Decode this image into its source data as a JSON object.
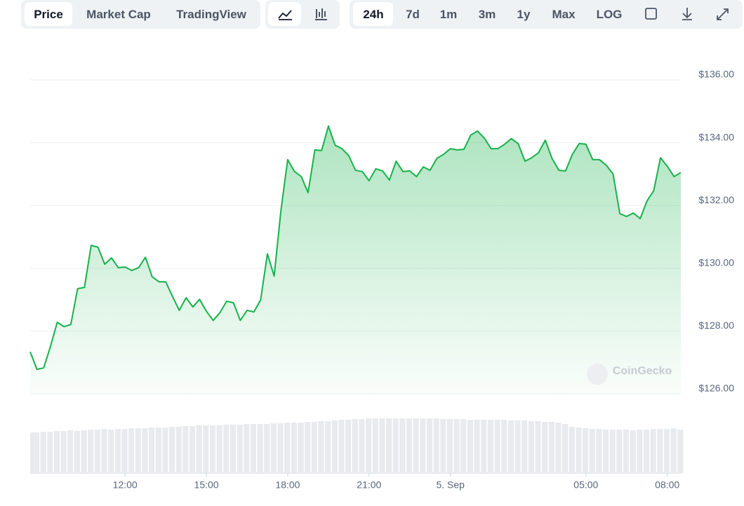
{
  "toolbar": {
    "views": [
      "Price",
      "Market Cap",
      "TradingView"
    ],
    "ranges": [
      "24h",
      "7d",
      "1m",
      "3m",
      "1y",
      "Max",
      "LOG"
    ]
  },
  "chart_data": {
    "type": "area",
    "watermark": "CoinGecko",
    "color": "#16b24a",
    "grid": true,
    "xlim": [
      8.5,
      32.5
    ],
    "xticks": [
      {
        "value": 12,
        "label": "12:00"
      },
      {
        "value": 15,
        "label": "15:00"
      },
      {
        "value": 18,
        "label": "18:00"
      },
      {
        "value": 21,
        "label": "21:00"
      },
      {
        "value": 24,
        "label": "5. Sep"
      },
      {
        "value": 29,
        "label": "05:00"
      },
      {
        "value": 32,
        "label": "08:00"
      }
    ],
    "ylim": [
      126,
      136
    ],
    "yticks": [
      {
        "value": 126,
        "label": "$126.00"
      },
      {
        "value": 128,
        "label": "$128.00"
      },
      {
        "value": 130,
        "label": "$130.00"
      },
      {
        "value": 132,
        "label": "$132.00"
      },
      {
        "value": 134,
        "label": "$134.00"
      },
      {
        "value": 136,
        "label": "$136.00"
      }
    ],
    "x": [
      8.5,
      8.75,
      9,
      9.25,
      9.5,
      9.75,
      10,
      10.25,
      10.5,
      10.75,
      11,
      11.25,
      11.5,
      11.75,
      12,
      12.25,
      12.5,
      12.75,
      13,
      13.25,
      13.5,
      13.75,
      14,
      14.25,
      14.5,
      14.75,
      15,
      15.25,
      15.5,
      15.75,
      16,
      16.25,
      16.5,
      16.75,
      17,
      17.25,
      17.5,
      17.75,
      18,
      18.25,
      18.5,
      18.75,
      19,
      19.25,
      19.5,
      19.75,
      20,
      20.25,
      20.5,
      20.75,
      21,
      21.25,
      21.5,
      21.75,
      22,
      22.25,
      22.5,
      22.75,
      23,
      23.25,
      23.5,
      23.75,
      24,
      24.25,
      24.5,
      24.75,
      25,
      25.25,
      25.5,
      25.75,
      26,
      26.25,
      26.5,
      26.75,
      27,
      27.25,
      27.5,
      27.75,
      28,
      28.25,
      28.5,
      28.75,
      29,
      29.25,
      29.5,
      29.75,
      30,
      30.25,
      30.5,
      30.75,
      31,
      31.25,
      31.5,
      31.75,
      32,
      32.25,
      32.5
    ],
    "series": [
      {
        "name": "Price",
        "values": [
          127.34,
          126.78,
          126.83,
          127.52,
          128.28,
          128.14,
          128.21,
          129.35,
          129.39,
          130.73,
          130.67,
          130.13,
          130.33,
          130.02,
          130.04,
          129.93,
          130.02,
          130.35,
          129.73,
          129.57,
          129.57,
          129.1,
          128.66,
          129.06,
          128.77,
          129.01,
          128.63,
          128.34,
          128.59,
          128.95,
          128.9,
          128.34,
          128.66,
          128.61,
          128.99,
          130.46,
          129.75,
          131.85,
          133.46,
          133.08,
          132.92,
          132.41,
          133.77,
          133.75,
          134.53,
          133.92,
          133.81,
          133.59,
          133.12,
          133.08,
          132.79,
          133.17,
          133.1,
          132.81,
          133.41,
          133.08,
          133.1,
          132.92,
          133.23,
          133.12,
          133.5,
          133.63,
          133.81,
          133.77,
          133.79,
          134.24,
          134.37,
          134.15,
          133.81,
          133.81,
          133.95,
          134.13,
          133.97,
          133.41,
          133.52,
          133.68,
          134.08,
          133.5,
          133.12,
          133.1,
          133.63,
          133.97,
          133.95,
          133.46,
          133.46,
          133.28,
          133.01,
          131.74,
          131.65,
          131.76,
          131.58,
          132.14,
          132.47,
          133.52,
          133.25,
          132.92,
          133.05
        ]
      }
    ],
    "volumes": [
      58,
      58,
      59,
      59,
      60,
      60,
      61,
      60,
      61,
      62,
      62,
      63,
      62,
      63,
      63,
      64,
      64,
      64,
      65,
      65,
      65,
      66,
      66,
      67,
      67,
      68,
      68,
      68,
      68,
      69,
      69,
      69,
      70,
      70,
      70,
      70,
      71,
      71,
      72,
      72,
      72,
      73,
      73,
      74,
      74,
      75,
      76,
      76,
      77,
      77,
      78,
      78,
      78,
      78,
      78,
      78,
      78,
      78,
      78,
      78,
      78,
      77,
      77,
      77,
      77,
      76,
      76,
      76,
      76,
      76,
      76,
      75,
      75,
      75,
      74,
      74,
      73,
      73,
      72,
      70,
      66,
      65,
      64,
      63,
      63,
      62,
      62,
      62,
      62,
      61,
      62,
      62,
      63,
      63,
      63,
      64,
      62
    ]
  }
}
